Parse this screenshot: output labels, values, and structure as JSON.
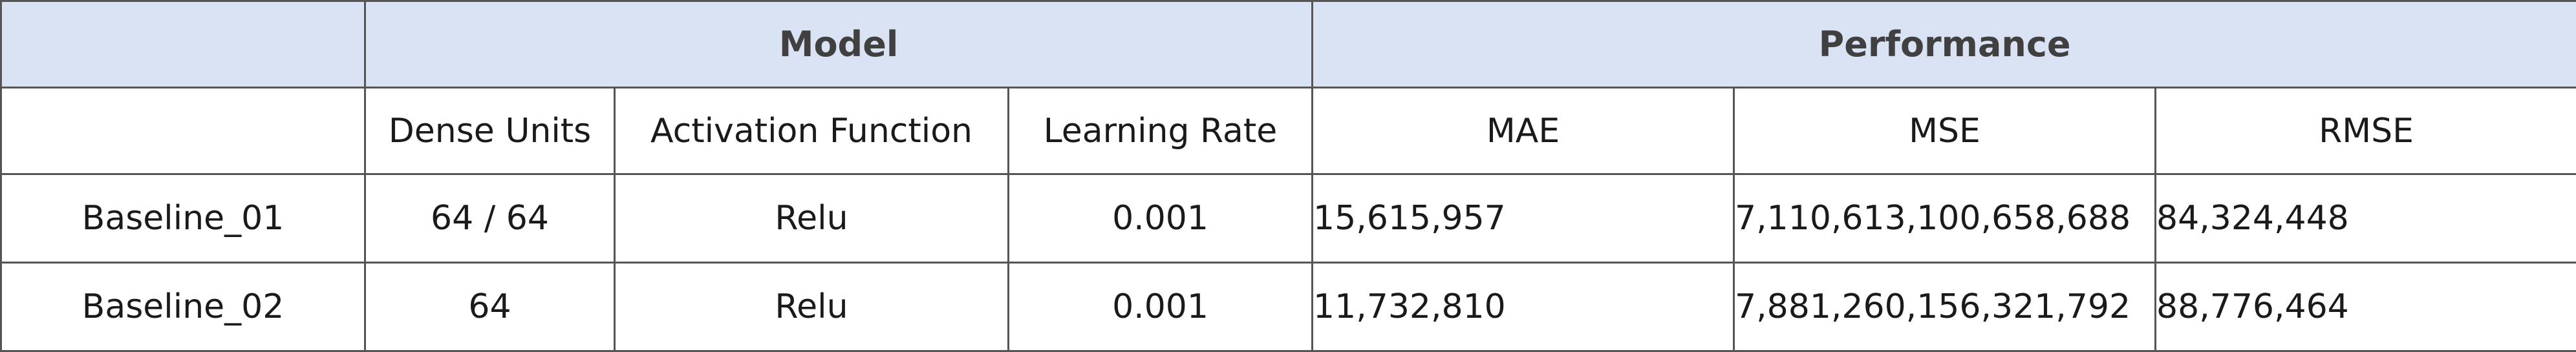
{
  "table": {
    "group_headers": {
      "corner": "",
      "model": "Model",
      "performance": "Performance"
    },
    "columns": {
      "corner": "",
      "dense_units": "Dense Units",
      "activation_function": "Activation Function",
      "learning_rate": "Learning Rate",
      "mae": "MAE",
      "mse": "MSE",
      "rmse": "RMSE"
    },
    "rows": [
      {
        "name": "Baseline_01",
        "dense_units": "64 / 64",
        "activation_function": "Relu",
        "learning_rate": "0.001",
        "mae": "15,615,957",
        "mse": "7,110,613,100,658,688",
        "rmse": "84,324,448"
      },
      {
        "name": "Baseline_02",
        "dense_units": "64",
        "activation_function": "Relu",
        "learning_rate": "0.001",
        "mae": "11,732,810",
        "mse": "7,881,260,156,321,792",
        "rmse": "88,776,464"
      }
    ],
    "colors": {
      "header_fill": "#dae3f3",
      "border": "#555555"
    }
  }
}
